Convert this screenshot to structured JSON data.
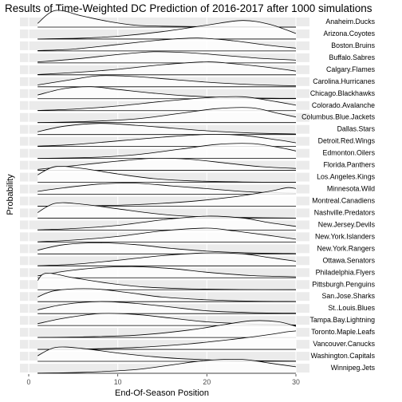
{
  "chart_data": {
    "type": "area",
    "title": "Results of Time-Weighted DC Prediction of 2016-2017 after 1000 simulations",
    "xlabel": "End-Of-Season Position",
    "ylabel": "Probability",
    "xlim": [
      0,
      30
    ],
    "x_ticks": [
      "0",
      "10",
      "20",
      "30"
    ],
    "grid": true,
    "legend": "none",
    "colors": {
      "band": "#ebebeb",
      "line": "#000000",
      "fill": "#ffffff"
    },
    "categories": [
      "Anaheim.Ducks",
      "Arizona.Coyotes",
      "Boston.Bruins",
      "Buffalo.Sabres",
      "Calgary.Flames",
      "Carolina.Hurricanes",
      "Chicago.Blackhawks",
      "Colorado.Avalanche",
      "Columbus.Blue.Jackets",
      "Dallas.Stars",
      "Detroit.Red.Wings",
      "Edmonton.Oilers",
      "Florida.Panthers",
      "Los.Angeles.Kings",
      "Minnesota.Wild",
      "Montreal.Canadiens",
      "Nashville.Predators",
      "New.Jersey.Devils",
      "New.York.Islanders",
      "New.York.Rangers",
      "Ottawa.Senators",
      "Philadelphia.Flyers",
      "Pittsburgh.Penguins",
      "San.Jose.Sharks",
      "St..Louis.Blues",
      "Tampa.Bay.Lightning",
      "Toronto.Maple.Leafs",
      "Vancouver.Canucks",
      "Washington.Capitals",
      "Winnipeg.Jets"
    ],
    "series": [
      {
        "name": "Anaheim.Ducks",
        "x": [
          1,
          3,
          6,
          9,
          12,
          15,
          20,
          25,
          30
        ],
        "values": [
          0.2,
          0.9,
          0.6,
          0.3,
          0.1,
          0.05,
          0.02,
          0.01,
          0
        ]
      },
      {
        "name": "Arizona.Coyotes",
        "x": [
          1,
          6,
          10,
          15,
          20,
          24,
          27,
          30
        ],
        "values": [
          0,
          0.05,
          0.15,
          0.4,
          0.75,
          1.0,
          0.8,
          0.3
        ]
      },
      {
        "name": "Boston.Bruins",
        "x": [
          1,
          5,
          10,
          15,
          19,
          23,
          27,
          30
        ],
        "values": [
          0.02,
          0.1,
          0.35,
          0.6,
          0.7,
          0.55,
          0.3,
          0.15
        ]
      },
      {
        "name": "Buffalo.Sabres",
        "x": [
          1,
          5,
          10,
          14,
          18,
          22,
          26,
          30
        ],
        "values": [
          0.05,
          0.2,
          0.45,
          0.6,
          0.55,
          0.4,
          0.25,
          0.15
        ]
      },
      {
        "name": "Calgary.Flames",
        "x": [
          1,
          5,
          10,
          15,
          20,
          23,
          27,
          30
        ],
        "values": [
          0.02,
          0.12,
          0.3,
          0.55,
          0.7,
          0.6,
          0.4,
          0.2
        ]
      },
      {
        "name": "Carolina.Hurricanes",
        "x": [
          1,
          5,
          8,
          12,
          16,
          20,
          25,
          30
        ],
        "values": [
          0.1,
          0.4,
          0.6,
          0.55,
          0.4,
          0.25,
          0.12,
          0.05
        ]
      },
      {
        "name": "Chicago.Blackhawks",
        "x": [
          1,
          4,
          7,
          10,
          14,
          18,
          24,
          30
        ],
        "values": [
          0.2,
          0.55,
          0.65,
          0.5,
          0.3,
          0.15,
          0.05,
          0.02
        ]
      },
      {
        "name": "Colorado.Avalanche",
        "x": [
          1,
          5,
          10,
          15,
          20,
          24,
          27,
          30
        ],
        "values": [
          0.01,
          0.08,
          0.25,
          0.5,
          0.7,
          0.75,
          0.55,
          0.3
        ]
      },
      {
        "name": "Columbus.Blue.Jackets",
        "x": [
          1,
          6,
          12,
          17,
          21,
          25,
          28,
          30
        ],
        "values": [
          0,
          0.05,
          0.2,
          0.5,
          0.75,
          0.8,
          0.5,
          0.3
        ]
      },
      {
        "name": "Dallas.Stars",
        "x": [
          1,
          4,
          8,
          12,
          16,
          20,
          25,
          30
        ],
        "values": [
          0.15,
          0.45,
          0.6,
          0.5,
          0.35,
          0.2,
          0.08,
          0.03
        ]
      },
      {
        "name": "Detroit.Red.Wings",
        "x": [
          1,
          5,
          10,
          15,
          20,
          24,
          28,
          30
        ],
        "values": [
          0.02,
          0.1,
          0.3,
          0.5,
          0.65,
          0.6,
          0.35,
          0.2
        ]
      },
      {
        "name": "Edmonton.Oilers",
        "x": [
          1,
          7,
          12,
          17,
          21,
          25,
          28,
          30
        ],
        "values": [
          0,
          0.05,
          0.2,
          0.5,
          0.75,
          0.8,
          0.6,
          0.4
        ]
      },
      {
        "name": "Florida.Panthers",
        "x": [
          1,
          5,
          10,
          14,
          18,
          22,
          26,
          30
        ],
        "values": [
          0.05,
          0.25,
          0.5,
          0.65,
          0.6,
          0.4,
          0.2,
          0.1
        ]
      },
      {
        "name": "Los.Angeles.Kings",
        "x": [
          1,
          3,
          6,
          10,
          14,
          18,
          24,
          30
        ],
        "values": [
          0.4,
          0.85,
          0.75,
          0.45,
          0.2,
          0.08,
          0.02,
          0
        ]
      },
      {
        "name": "Minnesota.Wild",
        "x": [
          1,
          4,
          8,
          12,
          16,
          20,
          25,
          30
        ],
        "values": [
          0.15,
          0.35,
          0.55,
          0.6,
          0.45,
          0.3,
          0.12,
          0.05
        ]
      },
      {
        "name": "Montreal.Canadiens",
        "x": [
          1,
          6,
          12,
          18,
          23,
          27,
          29,
          30
        ],
        "values": [
          0,
          0.02,
          0.08,
          0.25,
          0.5,
          0.8,
          1.0,
          0.95
        ]
      },
      {
        "name": "Nashville.Predators",
        "x": [
          1,
          3,
          6,
          10,
          14,
          18,
          24,
          30
        ],
        "values": [
          0.3,
          0.8,
          0.75,
          0.5,
          0.25,
          0.1,
          0.03,
          0
        ]
      },
      {
        "name": "New.Jersey.Devils",
        "x": [
          1,
          5,
          10,
          15,
          20,
          24,
          27,
          30
        ],
        "values": [
          0.01,
          0.08,
          0.25,
          0.55,
          0.75,
          0.65,
          0.4,
          0.2
        ]
      },
      {
        "name": "New.York.Islanders",
        "x": [
          1,
          5,
          10,
          15,
          20,
          23,
          27,
          30
        ],
        "values": [
          0.01,
          0.1,
          0.3,
          0.6,
          0.75,
          0.6,
          0.35,
          0.15
        ]
      },
      {
        "name": "New.York.Rangers",
        "x": [
          1,
          4,
          8,
          12,
          16,
          20,
          25,
          30
        ],
        "values": [
          0.2,
          0.5,
          0.6,
          0.5,
          0.3,
          0.15,
          0.05,
          0.02
        ]
      },
      {
        "name": "Ottawa.Senators",
        "x": [
          1,
          5,
          10,
          15,
          20,
          24,
          27,
          30
        ],
        "values": [
          0.01,
          0.08,
          0.3,
          0.55,
          0.7,
          0.65,
          0.45,
          0.25
        ]
      },
      {
        "name": "Philadelphia.Flyers",
        "x": [
          1,
          4,
          8,
          12,
          16,
          20,
          25,
          30
        ],
        "values": [
          0.1,
          0.35,
          0.55,
          0.6,
          0.5,
          0.3,
          0.12,
          0.05
        ]
      },
      {
        "name": "Pittsburgh.Penguins",
        "x": [
          1,
          2,
          5,
          9,
          13,
          18,
          24,
          30
        ],
        "values": [
          0.5,
          0.9,
          0.65,
          0.35,
          0.15,
          0.05,
          0.01,
          0
        ]
      },
      {
        "name": "San.Jose.Sharks",
        "x": [
          1,
          3,
          7,
          11,
          15,
          20,
          25,
          30
        ],
        "values": [
          0.25,
          0.6,
          0.7,
          0.5,
          0.25,
          0.1,
          0.03,
          0.01
        ]
      },
      {
        "name": "St..Louis.Blues",
        "x": [
          1,
          4,
          8,
          12,
          16,
          20,
          25,
          30
        ],
        "values": [
          0.2,
          0.5,
          0.65,
          0.55,
          0.35,
          0.15,
          0.05,
          0.02
        ]
      },
      {
        "name": "Tampa.Bay.Lightning",
        "x": [
          1,
          4,
          8,
          12,
          16,
          20,
          25,
          30
        ],
        "values": [
          0.1,
          0.4,
          0.65,
          0.6,
          0.4,
          0.2,
          0.08,
          0.03
        ]
      },
      {
        "name": "Toronto.Maple.Leafs",
        "x": [
          1,
          6,
          12,
          18,
          22,
          25,
          28,
          30
        ],
        "values": [
          0,
          0.03,
          0.12,
          0.4,
          0.7,
          0.9,
          0.85,
          0.6
        ]
      },
      {
        "name": "Vancouver.Canucks",
        "x": [
          1,
          6,
          12,
          18,
          23,
          27,
          29,
          30
        ],
        "values": [
          0,
          0.02,
          0.1,
          0.3,
          0.55,
          0.8,
          0.95,
          1.0
        ]
      },
      {
        "name": "Washington.Capitals",
        "x": [
          1,
          3,
          6,
          10,
          14,
          18,
          24,
          30
        ],
        "values": [
          0.3,
          0.75,
          0.7,
          0.45,
          0.25,
          0.12,
          0.04,
          0.01
        ]
      },
      {
        "name": "Winnipeg.Jets",
        "x": [
          1,
          6,
          12,
          16,
          20,
          24,
          27,
          30
        ],
        "values": [
          0.01,
          0.05,
          0.2,
          0.45,
          0.7,
          0.75,
          0.55,
          0.35
        ]
      }
    ]
  }
}
